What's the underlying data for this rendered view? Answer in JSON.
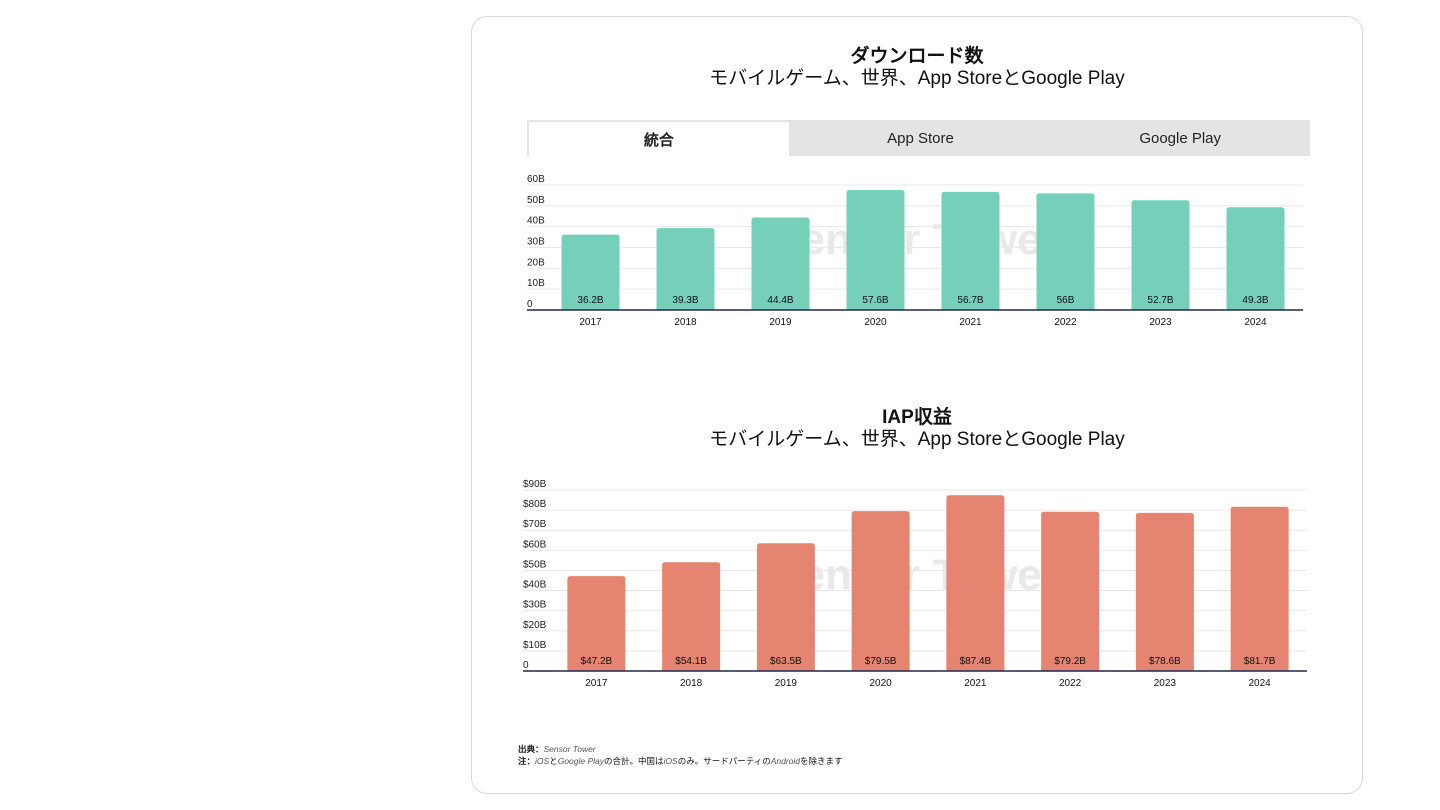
{
  "downloads": {
    "title": "ダウンロード数",
    "subtitle_prefix": "モバイルゲーム、世界、",
    "subtitle_s1": "App Store",
    "subtitle_mid": "と",
    "subtitle_s2": "Google Play",
    "tabs": [
      {
        "label": "統合",
        "active": true
      },
      {
        "label": "App Store",
        "active": false
      },
      {
        "label": "Google Play",
        "active": false
      }
    ]
  },
  "revenue": {
    "title": "IAP収益",
    "subtitle_prefix": "モバイルゲーム、世界、",
    "subtitle_s1": "App Store",
    "subtitle_mid": "と",
    "subtitle_s2": "Google Play"
  },
  "watermark": "Sensor Tower",
  "colors": {
    "downloads": "#76cfb9",
    "revenue": "#e58471",
    "axis": "#1b2a4a",
    "grid": "#e8e8e8"
  },
  "chart_data": [
    {
      "type": "bar",
      "title": "ダウンロード数",
      "categories": [
        "2017",
        "2018",
        "2019",
        "2020",
        "2021",
        "2022",
        "2023",
        "2024"
      ],
      "values": [
        36.2,
        39.3,
        44.4,
        57.6,
        56.7,
        56,
        52.7,
        49.3
      ],
      "value_labels": [
        "36.2B",
        "39.3B",
        "44.4B",
        "57.6B",
        "56.7B",
        "56B",
        "52.7B",
        "49.3B"
      ],
      "y_ticks": [
        0,
        10,
        20,
        30,
        40,
        50,
        60
      ],
      "y_tick_labels": [
        "0",
        "10B",
        "20B",
        "30B",
        "40B",
        "50B",
        "60B"
      ],
      "ylim": [
        0,
        60
      ],
      "grid": true
    },
    {
      "type": "bar",
      "title": "IAP収益",
      "categories": [
        "2017",
        "2018",
        "2019",
        "2020",
        "2021",
        "2022",
        "2023",
        "2024"
      ],
      "values": [
        47.2,
        54.1,
        63.5,
        79.5,
        87.4,
        79.2,
        78.6,
        81.7
      ],
      "value_labels": [
        "$47.2B",
        "$54.1B",
        "$63.5B",
        "$79.5B",
        "$87.4B",
        "$79.2B",
        "$78.6B",
        "$81.7B"
      ],
      "y_ticks": [
        0,
        10,
        20,
        30,
        40,
        50,
        60,
        70,
        80,
        90
      ],
      "y_tick_labels": [
        "0",
        "$10B",
        "$20B",
        "$30B",
        "$40B",
        "$50B",
        "$60B",
        "$70B",
        "$80B",
        "$90B"
      ],
      "ylim": [
        0,
        90
      ],
      "grid": true
    }
  ],
  "footer": {
    "source_label": "出典：",
    "source_value": "Sensor Tower",
    "note_label": "注：",
    "note_ios": "iOS",
    "note_and": "と",
    "note_gp": "Google Play",
    "note_text1": "の合計。中国は",
    "note_ios2": "iOS",
    "note_text2": "のみ。サードパーティの",
    "note_android": "Android",
    "note_text3": "を除きます"
  }
}
